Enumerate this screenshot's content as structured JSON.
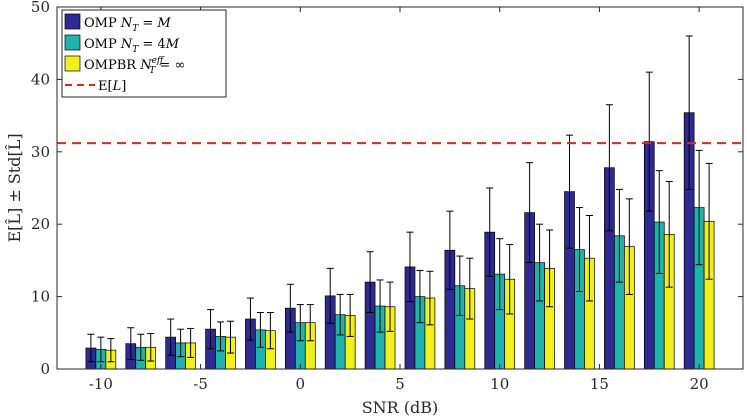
{
  "chart_data": {
    "type": "bar",
    "xlabel": "SNR (dB)",
    "ylabel": "E[L̂] ± Std[L̂]",
    "ylim": [
      0,
      50
    ],
    "yticks": [
      "0",
      "10",
      "20",
      "30",
      "40",
      "50"
    ],
    "x": [
      -10,
      -8,
      -6,
      -4,
      -2,
      0,
      2,
      4,
      6,
      8,
      10,
      12,
      14,
      16,
      18,
      20
    ],
    "xticks": [
      "-10",
      "-5",
      "0",
      "5",
      "10",
      "15",
      "20"
    ],
    "xtick_values": [
      -10,
      -5,
      0,
      5,
      10,
      15,
      20
    ],
    "xlim": [
      -12.2,
      22.2
    ],
    "grid": false,
    "legend_position": "top-left",
    "series": [
      {
        "name": "OMP N_T = M",
        "color": "#2e2a91",
        "values": [
          2.9,
          3.5,
          4.4,
          5.5,
          6.9,
          8.4,
          10.1,
          12.0,
          14.1,
          16.4,
          18.9,
          21.6,
          24.5,
          27.8,
          31.4,
          35.4
        ],
        "std": [
          1.9,
          2.2,
          2.5,
          2.7,
          2.9,
          3.3,
          3.8,
          4.2,
          4.8,
          5.4,
          6.1,
          6.9,
          7.8,
          8.7,
          9.6,
          10.6
        ]
      },
      {
        "name": "OMP N_T = 4M",
        "color": "#1fb3ad",
        "values": [
          2.7,
          3.0,
          3.6,
          4.5,
          5.4,
          6.4,
          7.5,
          8.7,
          10.0,
          11.5,
          13.1,
          14.7,
          16.5,
          18.4,
          20.3,
          22.3
        ],
        "std": [
          1.7,
          1.8,
          1.9,
          2.0,
          2.4,
          2.5,
          2.8,
          3.6,
          3.6,
          4.1,
          4.9,
          5.3,
          5.8,
          6.4,
          7.1,
          7.9
        ]
      },
      {
        "name": "OMPBR N_T^eff = ∞",
        "color": "#f2ef1a",
        "values": [
          2.6,
          3.0,
          3.6,
          4.4,
          5.3,
          6.4,
          7.4,
          8.6,
          9.8,
          11.1,
          12.4,
          13.9,
          15.3,
          16.9,
          18.6,
          20.4
        ],
        "std": [
          1.6,
          1.9,
          2.0,
          2.2,
          2.5,
          2.5,
          2.9,
          3.4,
          3.7,
          4.2,
          4.8,
          5.3,
          5.9,
          6.6,
          7.3,
          8.0
        ]
      }
    ],
    "reference_line": {
      "name": "E[L]",
      "value": 31.2,
      "color": "#e8231e"
    },
    "legend_entries": [
      {
        "base": "OMP ",
        "var": "N",
        "sub": "T",
        "sup": "",
        "op": " = ",
        "rhs": "M",
        "rhs_italic": true,
        "color": "#2e2a91",
        "kind": "bar"
      },
      {
        "base": "OMP ",
        "var": "N",
        "sub": "T",
        "sup": "",
        "op": " = ",
        "rhs": "4",
        "rhs_italic_tail": "M",
        "rhs_italic": false,
        "color": "#1fb3ad",
        "kind": "bar"
      },
      {
        "base": "OMPBR ",
        "var": "N",
        "sub": "T",
        "sup": "eff",
        "op": " = ",
        "rhs": "∞",
        "rhs_italic": false,
        "color": "#f2ef1a",
        "kind": "bar"
      },
      {
        "base": "E[",
        "var": "L",
        "sub": "",
        "sup": "",
        "op": "]",
        "rhs": "",
        "rhs_italic": false,
        "color": "#e8231e",
        "kind": "dash"
      }
    ]
  }
}
